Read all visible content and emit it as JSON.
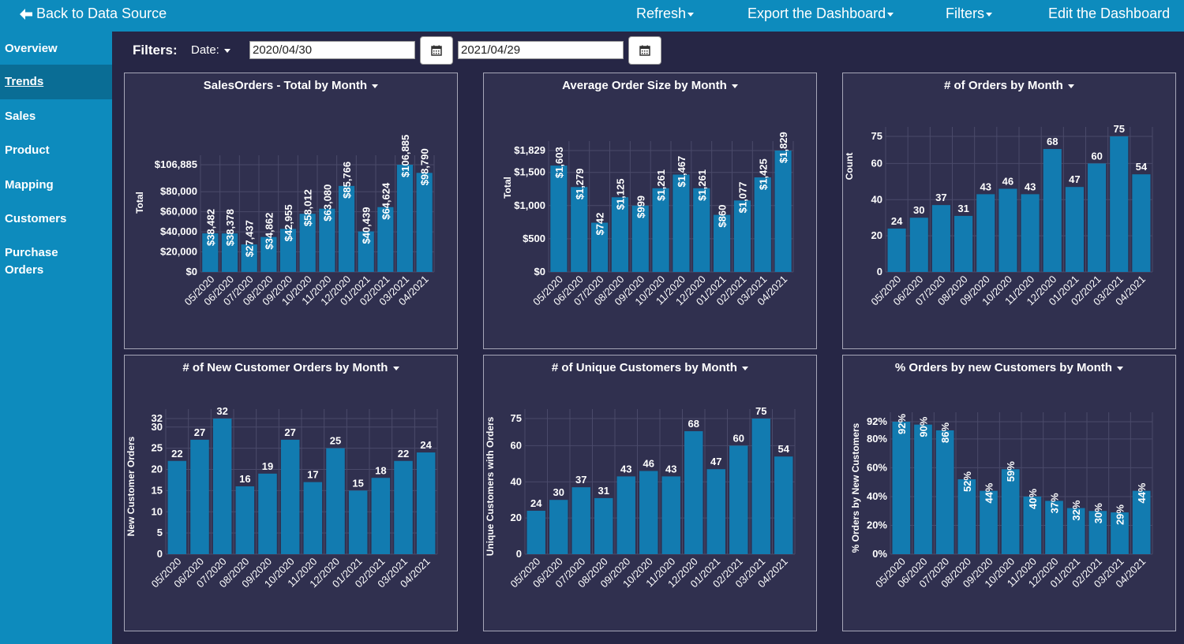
{
  "topbar": {
    "back_label": "Back to Data Source",
    "refresh_label": "Refresh",
    "export_label": "Export the Dashboard",
    "filters_label": "Filters",
    "edit_label": "Edit the Dashboard"
  },
  "sidebar": {
    "items": [
      {
        "label": "Overview"
      },
      {
        "label": "Trends"
      },
      {
        "label": "Sales"
      },
      {
        "label": "Product"
      },
      {
        "label": "Mapping"
      },
      {
        "label": "Customers"
      },
      {
        "label": "Purchase Orders"
      }
    ]
  },
  "filterbar": {
    "label": "Filters:",
    "date_label": "Date:",
    "start_date": "2020/04/30",
    "end_date": "2021/04/29"
  },
  "colors": {
    "bar": "#127bb0",
    "grid": "#4a4a6a",
    "panel": "#30304f",
    "accent": "#0d8bbd"
  },
  "chart_data": [
    {
      "type": "bar",
      "title": "SalesOrders - Total by Month",
      "ylabel": "Total",
      "categories": [
        "05/2020",
        "06/2020",
        "07/2020",
        "08/2020",
        "09/2020",
        "10/2020",
        "11/2020",
        "12/2020",
        "01/2021",
        "02/2021",
        "03/2021",
        "04/2021"
      ],
      "values": [
        38482,
        38378,
        27437,
        34862,
        42955,
        58012,
        63080,
        85766,
        40439,
        64624,
        106885,
        98790
      ],
      "data_labels": [
        "$38,482",
        "$38,378",
        "$27,437",
        "$34,862",
        "$42,955",
        "$58,012",
        "$63,080",
        "$85,766",
        "$40,439",
        "$64,624",
        "$106,885",
        "$98,790"
      ],
      "yticks": [
        0,
        20000,
        40000,
        60000,
        80000,
        106885
      ],
      "ytick_labels": [
        "$0",
        "$20,000",
        "$40,000",
        "$60,000",
        "$80,000",
        "$106,885"
      ],
      "ylim": [
        0,
        106885
      ],
      "label_rotated": true,
      "grid": true
    },
    {
      "type": "bar",
      "title": "Average Order Size by Month",
      "ylabel": "Total",
      "categories": [
        "05/2020",
        "06/2020",
        "07/2020",
        "08/2020",
        "09/2020",
        "10/2020",
        "11/2020",
        "12/2020",
        "01/2021",
        "02/2021",
        "03/2021",
        "04/2021"
      ],
      "values": [
        1603,
        1279,
        742,
        1125,
        999,
        1261,
        1467,
        1261,
        860,
        1077,
        1425,
        1829
      ],
      "data_labels": [
        "$1,603",
        "$1,279",
        "$742",
        "$1,125",
        "$999",
        "$1,261",
        "$1,467",
        "$1,261",
        "$860",
        "$1,077",
        "$1,425",
        "$1,829"
      ],
      "yticks": [
        0,
        500,
        1000,
        1500,
        1829
      ],
      "ytick_labels": [
        "$0",
        "$500",
        "$1,000",
        "$1,500",
        "$1,829"
      ],
      "ylim": [
        0,
        1829
      ],
      "label_rotated": true,
      "grid": true
    },
    {
      "type": "bar",
      "title": "# of Orders by Month",
      "ylabel": "Count",
      "categories": [
        "05/2020",
        "06/2020",
        "07/2020",
        "08/2020",
        "09/2020",
        "10/2020",
        "11/2020",
        "12/2020",
        "01/2021",
        "02/2021",
        "03/2021",
        "04/2021"
      ],
      "values": [
        24,
        30,
        37,
        31,
        43,
        46,
        43,
        68,
        47,
        60,
        75,
        54
      ],
      "data_labels": [
        "24",
        "30",
        "37",
        "31",
        "43",
        "46",
        "43",
        "68",
        "47",
        "60",
        "75",
        "54"
      ],
      "yticks": [
        0,
        20,
        40,
        60,
        75
      ],
      "ytick_labels": [
        "0",
        "20",
        "40",
        "60",
        "75"
      ],
      "ylim": [
        0,
        75
      ],
      "label_rotated": false,
      "grid": true
    },
    {
      "type": "bar",
      "title": "# of New Customer Orders by Month",
      "ylabel": "New Customer Orders",
      "categories": [
        "05/2020",
        "06/2020",
        "07/2020",
        "08/2020",
        "09/2020",
        "10/2020",
        "11/2020",
        "12/2020",
        "01/2021",
        "02/2021",
        "03/2021",
        "04/2021"
      ],
      "values": [
        22,
        27,
        32,
        16,
        19,
        27,
        17,
        25,
        15,
        18,
        22,
        24
      ],
      "data_labels": [
        "22",
        "27",
        "32",
        "16",
        "19",
        "27",
        "17",
        "25",
        "15",
        "18",
        "22",
        "24"
      ],
      "yticks": [
        0,
        5,
        10,
        15,
        20,
        25,
        30,
        32
      ],
      "ytick_labels": [
        "0",
        "5",
        "10",
        "15",
        "20",
        "25",
        "30",
        "32"
      ],
      "ylim": [
        0,
        32
      ],
      "label_rotated": false,
      "grid": true
    },
    {
      "type": "bar",
      "title": "# of Unique Customers by Month",
      "ylabel": "Unique Customers with Orders",
      "categories": [
        "05/2020",
        "06/2020",
        "07/2020",
        "08/2020",
        "09/2020",
        "10/2020",
        "11/2020",
        "12/2020",
        "01/2021",
        "02/2021",
        "03/2021",
        "04/2021"
      ],
      "values": [
        24,
        30,
        37,
        31,
        43,
        46,
        43,
        68,
        47,
        60,
        75,
        54
      ],
      "data_labels": [
        "24",
        "30",
        "37",
        "31",
        "43",
        "46",
        "43",
        "68",
        "47",
        "60",
        "75",
        "54"
      ],
      "yticks": [
        0,
        20,
        40,
        60,
        75
      ],
      "ytick_labels": [
        "0",
        "20",
        "40",
        "60",
        "75"
      ],
      "ylim": [
        0,
        75
      ],
      "label_rotated": false,
      "grid": true
    },
    {
      "type": "bar",
      "title": "% Orders by new Customers by Month",
      "ylabel": "% Orders by New Customers",
      "categories": [
        "05/2020",
        "06/2020",
        "07/2020",
        "08/2020",
        "09/2020",
        "10/2020",
        "11/2020",
        "12/2020",
        "01/2021",
        "02/2021",
        "03/2021",
        "04/2021"
      ],
      "values": [
        92,
        90,
        86,
        52,
        44,
        59,
        40,
        37,
        32,
        30,
        29,
        44
      ],
      "data_labels": [
        "92%",
        "90%",
        "86%",
        "52%",
        "44%",
        "59%",
        "40%",
        "37%",
        "32%",
        "30%",
        "29%",
        "44%"
      ],
      "yticks": [
        0,
        20,
        40,
        60,
        80,
        92
      ],
      "ytick_labels": [
        "0%",
        "20%",
        "40%",
        "60%",
        "80%",
        "92%"
      ],
      "ylim": [
        0,
        92
      ],
      "label_rotated": true,
      "grid": true
    }
  ]
}
